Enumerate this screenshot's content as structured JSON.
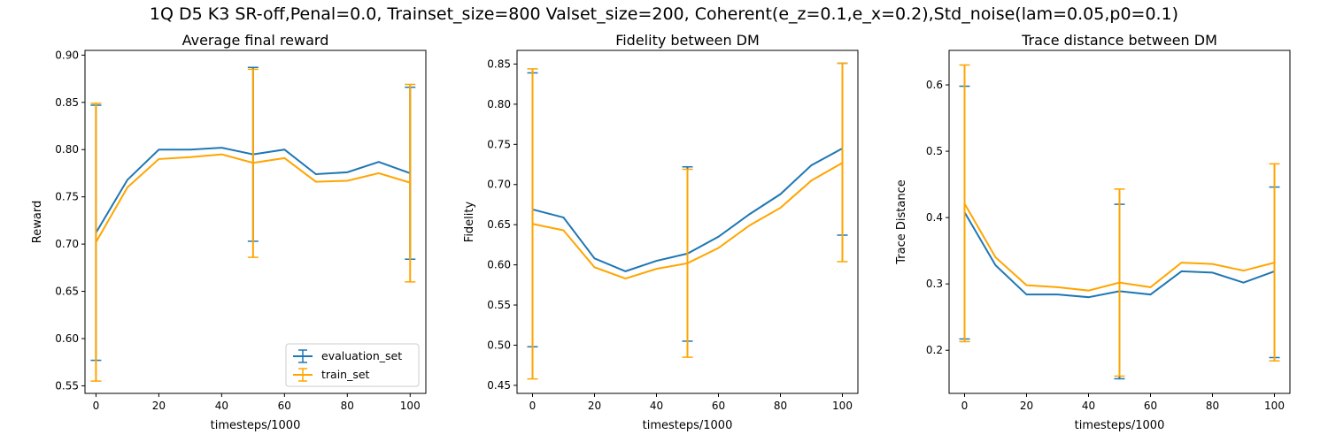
{
  "figure": {
    "suptitle": "1Q D5 K3 SR-off,Penal=0.0, Trainset_size=800 Valset_size=200, Coherent(e_z=0.1,e_x=0.2),Std_noise(lam=0.05,p0=0.1)"
  },
  "colors": {
    "evaluation_set": "#1f77b4",
    "train_set": "#ffa500"
  },
  "chart_data": [
    {
      "type": "line",
      "title": "Average final reward",
      "xlabel": "timesteps/1000",
      "ylabel": "Reward",
      "xlim": [
        -3.5,
        105
      ],
      "ylim": [
        0.542,
        0.905
      ],
      "xticks": [
        0,
        20,
        40,
        60,
        80,
        100
      ],
      "xtick_labels": [
        "0",
        "20",
        "40",
        "60",
        "80",
        "100"
      ],
      "yticks": [
        0.55,
        0.6,
        0.65,
        0.7,
        0.75,
        0.8,
        0.85,
        0.9
      ],
      "ytick_labels": [
        "0.55",
        "0.60",
        "0.65",
        "0.70",
        "0.75",
        "0.80",
        "0.85",
        "0.90"
      ],
      "legend": {
        "position": "lower-right",
        "entries": [
          "evaluation_set",
          "train_set"
        ]
      },
      "x": [
        0,
        10,
        20,
        30,
        40,
        50,
        60,
        70,
        80,
        90,
        100
      ],
      "series": [
        {
          "name": "evaluation_set",
          "color": "#1f77b4",
          "values": [
            0.712,
            0.768,
            0.8,
            0.8,
            0.802,
            0.795,
            0.8,
            0.774,
            0.776,
            0.787,
            0.775
          ],
          "errorbars": [
            {
              "x": 0,
              "low": 0.577,
              "high": 0.847
            },
            {
              "x": 50,
              "low": 0.703,
              "high": 0.887
            },
            {
              "x": 100,
              "low": 0.684,
              "high": 0.866
            }
          ]
        },
        {
          "name": "train_set",
          "color": "#ffa500",
          "values": [
            0.702,
            0.76,
            0.79,
            0.792,
            0.795,
            0.786,
            0.791,
            0.766,
            0.767,
            0.775,
            0.765
          ],
          "errorbars": [
            {
              "x": 0,
              "low": 0.555,
              "high": 0.849
            },
            {
              "x": 50,
              "low": 0.686,
              "high": 0.885
            },
            {
              "x": 100,
              "low": 0.66,
              "high": 0.869
            }
          ]
        }
      ]
    },
    {
      "type": "line",
      "title": "Fidelity between DM",
      "xlabel": "timesteps/1000",
      "ylabel": "Fidelity",
      "xlim": [
        -5,
        105
      ],
      "ylim": [
        0.44,
        0.867
      ],
      "xticks": [
        0,
        20,
        40,
        60,
        80,
        100
      ],
      "xtick_labels": [
        "0",
        "20",
        "40",
        "60",
        "80",
        "100"
      ],
      "yticks": [
        0.45,
        0.5,
        0.55,
        0.6,
        0.65,
        0.7,
        0.75,
        0.8,
        0.85
      ],
      "ytick_labels": [
        "0.45",
        "0.50",
        "0.55",
        "0.60",
        "0.65",
        "0.70",
        "0.75",
        "0.80",
        "0.85"
      ],
      "x": [
        0,
        10,
        20,
        30,
        40,
        50,
        60,
        70,
        80,
        90,
        100
      ],
      "series": [
        {
          "name": "evaluation_set",
          "color": "#1f77b4",
          "values": [
            0.669,
            0.659,
            0.608,
            0.592,
            0.605,
            0.614,
            0.635,
            0.663,
            0.688,
            0.724,
            0.745
          ],
          "errorbars": [
            {
              "x": 0,
              "low": 0.498,
              "high": 0.839
            },
            {
              "x": 50,
              "low": 0.505,
              "high": 0.722
            },
            {
              "x": 100,
              "low": 0.637,
              "high": 0.851
            }
          ]
        },
        {
          "name": "train_set",
          "color": "#ffa500",
          "values": [
            0.651,
            0.643,
            0.597,
            0.583,
            0.595,
            0.602,
            0.621,
            0.649,
            0.671,
            0.705,
            0.727
          ],
          "errorbars": [
            {
              "x": 0,
              "low": 0.458,
              "high": 0.844
            },
            {
              "x": 50,
              "low": 0.485,
              "high": 0.719
            },
            {
              "x": 100,
              "low": 0.604,
              "high": 0.851
            }
          ]
        }
      ]
    },
    {
      "type": "line",
      "title": "Trace distance between DM",
      "xlabel": "timesteps/1000",
      "ylabel": "Trace Distance",
      "xlim": [
        -5,
        105
      ],
      "ylim": [
        0.135,
        0.652
      ],
      "xticks": [
        0,
        20,
        40,
        60,
        80,
        100
      ],
      "xtick_labels": [
        "0",
        "20",
        "40",
        "60",
        "80",
        "100"
      ],
      "yticks": [
        0.2,
        0.3,
        0.4,
        0.5,
        0.6
      ],
      "ytick_labels": [
        "0.2",
        "0.3",
        "0.4",
        "0.5",
        "0.6"
      ],
      "x": [
        0,
        10,
        20,
        30,
        40,
        50,
        60,
        70,
        80,
        90,
        100
      ],
      "series": [
        {
          "name": "evaluation_set",
          "color": "#1f77b4",
          "values": [
            0.408,
            0.328,
            0.284,
            0.284,
            0.28,
            0.289,
            0.284,
            0.319,
            0.317,
            0.302,
            0.319
          ],
          "errorbars": [
            {
              "x": 0,
              "low": 0.217,
              "high": 0.598
            },
            {
              "x": 50,
              "low": 0.157,
              "high": 0.42
            },
            {
              "x": 100,
              "low": 0.189,
              "high": 0.446
            }
          ]
        },
        {
          "name": "train_set",
          "color": "#ffa500",
          "values": [
            0.421,
            0.34,
            0.298,
            0.295,
            0.29,
            0.302,
            0.295,
            0.332,
            0.33,
            0.32,
            0.332
          ],
          "errorbars": [
            {
              "x": 0,
              "low": 0.213,
              "high": 0.63
            },
            {
              "x": 50,
              "low": 0.161,
              "high": 0.443
            },
            {
              "x": 100,
              "low": 0.184,
              "high": 0.481
            }
          ]
        }
      ]
    }
  ]
}
